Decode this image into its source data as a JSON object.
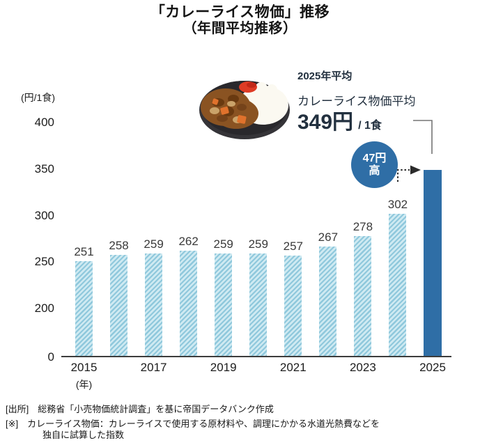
{
  "title": {
    "line1": "「カレーライス物価」推移",
    "line2": "（年間平均推移）"
  },
  "annotation": {
    "year_label": "2025年平均",
    "metric_label": "カレーライス物価平均",
    "price_value": "349円",
    "price_unit": "/ 1食",
    "badge_line1": "47円",
    "badge_line2": "高",
    "curry_icon": "curry-rice-plate-illustration"
  },
  "chart_data": {
    "type": "bar",
    "title": "「カレーライス物価」推移（年間平均推移）",
    "ylabel": "(円/1食)",
    "xlabel": "(年)",
    "categories": [
      "2015",
      "2016",
      "2017",
      "2018",
      "2019",
      "2020",
      "2021",
      "2022",
      "2023",
      "2024",
      "2025"
    ],
    "values": [
      251,
      258,
      259,
      262,
      259,
      259,
      257,
      267,
      278,
      302,
      349
    ],
    "value_labels_shown": [
      251,
      258,
      259,
      262,
      259,
      259,
      257,
      267,
      278,
      302
    ],
    "highlight_index": 10,
    "highlight_value": 349,
    "y_ticks": [
      0,
      200,
      250,
      300,
      350,
      400
    ],
    "x_tick_labels": [
      "2015",
      "2017",
      "2019",
      "2021",
      "2023",
      "2025"
    ],
    "broken_axis": true,
    "grid": false,
    "legend": "none",
    "colors": {
      "bar_hatch_dark": "#8fc8dc",
      "bar_hatch_light": "#cfeaf2",
      "bar_highlight": "#2f6ea6",
      "badge_fill": "#2f6ea6",
      "axis": "#3c3c3c",
      "text": "#1c1c1c"
    }
  },
  "footer": {
    "source_line": "[出所]　総務省「小売物価統計調査」を基に帝国データバンク作成",
    "note_line1": "[※]　カレーライス物価：カレーライスで使用する原材料や、調理にかかる水道光熱費などを",
    "note_line2": "独自に試算した指数"
  }
}
